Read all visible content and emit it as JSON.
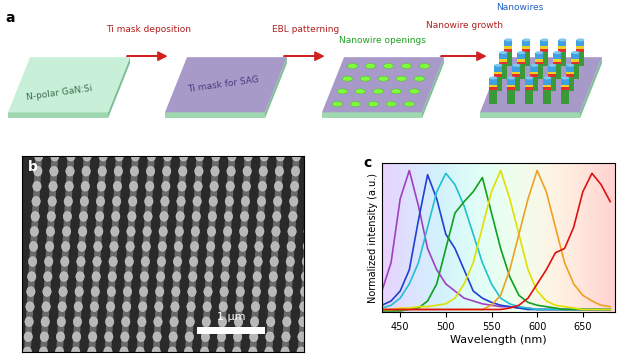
{
  "panel_labels": [
    "a",
    "b",
    "c"
  ],
  "diagram": {
    "stages": [
      "N-polar GaN:Si",
      "Ti mask for SAG",
      "Nanowire openings",
      "Nanowires"
    ],
    "arrows": [
      "Ti mask deposition",
      "EBL patterning",
      "Nanowire growth"
    ]
  },
  "sem_image": {
    "scale_bar": "1 μm"
  },
  "chart_data": {
    "type": "line",
    "xlabel": "Wavelength (nm)",
    "ylabel": "Normalized intensity (a.u.)",
    "xlim": [
      430,
      685
    ],
    "xticks": [
      450,
      500,
      550,
      600,
      650
    ],
    "ylim": [
      0,
      1.05
    ],
    "tick_labels": "x",
    "x": [
      430,
      440,
      450,
      460,
      470,
      480,
      490,
      500,
      510,
      520,
      530,
      540,
      550,
      560,
      570,
      580,
      590,
      600,
      610,
      620,
      630,
      640,
      650,
      660,
      670,
      680
    ],
    "series": [
      {
        "color": "#a040c0",
        "values": [
          0.15,
          0.35,
          0.8,
          1.0,
          0.75,
          0.45,
          0.3,
          0.2,
          0.15,
          0.1,
          0.08,
          0.06,
          0.05,
          0.04,
          0.04,
          0.03,
          0.03,
          0.02,
          0.02,
          0.02,
          0.02,
          0.02,
          0.02,
          0.02,
          0.02,
          0.02
        ]
      },
      {
        "color": "#2040d0",
        "values": [
          0.05,
          0.08,
          0.15,
          0.3,
          0.65,
          0.97,
          0.8,
          0.55,
          0.45,
          0.3,
          0.15,
          0.1,
          0.07,
          0.05,
          0.04,
          0.03,
          0.02,
          0.02,
          0.02,
          0.02,
          0.02,
          0.02,
          0.02,
          0.02,
          0.02,
          0.02
        ]
      },
      {
        "color": "#20c0d0",
        "values": [
          0.03,
          0.05,
          0.1,
          0.2,
          0.35,
          0.6,
          0.85,
          0.98,
          0.9,
          0.75,
          0.55,
          0.35,
          0.2,
          0.1,
          0.06,
          0.04,
          0.03,
          0.02,
          0.02,
          0.02,
          0.02,
          0.02,
          0.02,
          0.02,
          0.02,
          0.02
        ]
      },
      {
        "color": "#10a020",
        "values": [
          0.01,
          0.01,
          0.01,
          0.02,
          0.03,
          0.08,
          0.2,
          0.45,
          0.7,
          0.78,
          0.85,
          0.95,
          0.7,
          0.45,
          0.25,
          0.12,
          0.07,
          0.05,
          0.04,
          0.03,
          0.02,
          0.02,
          0.02,
          0.02,
          0.02,
          0.02
        ]
      },
      {
        "color": "#e0e000",
        "values": [
          0.02,
          0.02,
          0.03,
          0.03,
          0.04,
          0.04,
          0.05,
          0.06,
          0.1,
          0.2,
          0.35,
          0.6,
          0.85,
          1.0,
          0.8,
          0.55,
          0.3,
          0.15,
          0.08,
          0.05,
          0.04,
          0.03,
          0.02,
          0.02,
          0.02,
          0.02
        ]
      },
      {
        "color": "#f0a020",
        "values": [
          0.02,
          0.02,
          0.02,
          0.02,
          0.02,
          0.02,
          0.02,
          0.02,
          0.02,
          0.02,
          0.02,
          0.02,
          0.05,
          0.12,
          0.3,
          0.55,
          0.8,
          1.0,
          0.85,
          0.6,
          0.35,
          0.2,
          0.12,
          0.08,
          0.05,
          0.04
        ]
      },
      {
        "color": "#e01010",
        "values": [
          0.02,
          0.02,
          0.02,
          0.02,
          0.02,
          0.02,
          0.02,
          0.02,
          0.02,
          0.02,
          0.02,
          0.02,
          0.02,
          0.02,
          0.03,
          0.05,
          0.1,
          0.2,
          0.3,
          0.42,
          0.45,
          0.6,
          0.85,
          0.98,
          0.9,
          0.78
        ]
      }
    ]
  }
}
